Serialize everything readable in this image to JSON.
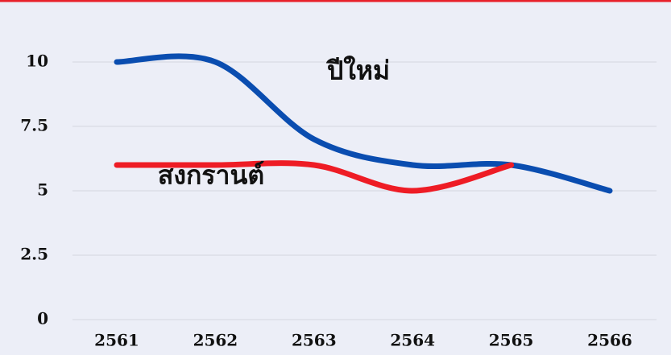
{
  "chart_data": {
    "type": "line",
    "categories": [
      "2561",
      "2562",
      "2563",
      "2564",
      "2565",
      "2566"
    ],
    "series": [
      {
        "name": "ปีใหม่",
        "color": "#0a4db0",
        "values": [
          10,
          10,
          7,
          6,
          6,
          5
        ]
      },
      {
        "name": "สงกรานต์",
        "color": "#ee1c25",
        "values": [
          6,
          6,
          6,
          5,
          6,
          null
        ]
      }
    ],
    "ylim": [
      0,
      10
    ],
    "yticks": [
      0,
      2.5,
      5,
      7.5,
      10
    ],
    "grid": true,
    "smooth": true
  }
}
